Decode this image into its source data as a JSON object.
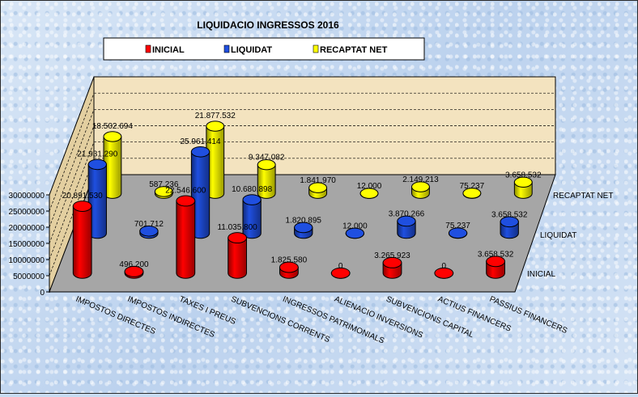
{
  "chart_data": {
    "type": "bar",
    "title": "LIQUIDACIO  INGRESSOS  2016",
    "categories": [
      "IMPOSTOS DIRECTES",
      "IMPOSTOS INDIRECTES",
      "TAXES I PREUS",
      "SUBVENCIONS CORRENTS",
      "INGRESSOS PATRIMONIALS",
      "ALIENACIO INVERSIONS",
      "SUBVENCIONS CAPITAL",
      "ACTIUS FINANCERS",
      "PASSIUS FINANCERS"
    ],
    "series": [
      {
        "name": "INICIAL",
        "color": "#ff0000",
        "values": [
          20891530,
          496200,
          22546600,
          11035800,
          1825580,
          0,
          3265923,
          0,
          3658532
        ],
        "labels": [
          "20.891.530",
          "496.200",
          "22.546.600",
          "11.035.800",
          "1.825.580",
          "0",
          "3.265.923",
          "0",
          "3.658.532"
        ]
      },
      {
        "name": "LIQUIDAT",
        "color": "#1f4fe0",
        "values": [
          21931290,
          701712,
          25961414,
          10680898,
          1820895,
          12000,
          3870266,
          75237,
          3658532
        ],
        "labels": [
          "21.931.290",
          "701.712",
          "25.961.414",
          "10.680.898",
          "1.820.895",
          "12.000",
          "3.870.266",
          "75.237",
          "3.658.532"
        ]
      },
      {
        "name": "RECAPTAT NET",
        "color": "#ffff00",
        "values": [
          18502694,
          587236,
          21877532,
          9347082,
          1841970,
          12000,
          2149213,
          75237,
          3658532
        ],
        "labels": [
          "18.502.694",
          "587.236",
          "21.877.532",
          "9.347.082",
          "1.841.970",
          "12.000",
          "2.149.213",
          "75.237",
          "3.658.532"
        ]
      }
    ],
    "y_ticks": [
      "0",
      "5000000",
      "10000000",
      "15000000",
      "20000000",
      "25000000",
      "30000000"
    ],
    "ylim": [
      0,
      30000000
    ],
    "depth_labels": [
      "INICIAL",
      "LIQUIDAT",
      "RECAPTAT NET"
    ],
    "legend_position": "top",
    "grid": true
  }
}
